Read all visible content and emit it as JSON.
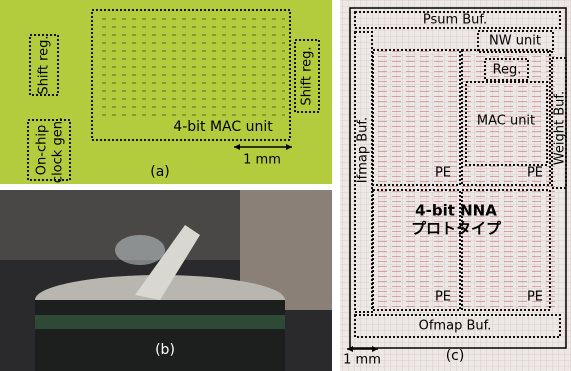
{
  "panel_a": {
    "shift_reg_left": "Shift reg.",
    "shift_reg_right": "Shift reg.",
    "clock_gen": [
      "On-chip",
      "clock gen."
    ],
    "mac_unit": "4-bit MAC unit",
    "scale": "1 mm",
    "label": "(a)"
  },
  "panel_b": {
    "label": "(b)"
  },
  "panel_c": {
    "psum_buf": "Psum Buf.",
    "nw_unit": "NW unit",
    "reg": "Reg.",
    "ifmap_buf": "Ifmap Buf.",
    "mac_unit": "MAC unit",
    "weight_buf": "Weight Buf.",
    "pe": [
      "PE",
      "PE",
      "PE",
      "PE"
    ],
    "nna": [
      "4-bit NNA",
      "プロトタイプ"
    ],
    "ofmap_buf": "Ofmap Buf.",
    "scale": "1 mm",
    "label": "(c)"
  }
}
